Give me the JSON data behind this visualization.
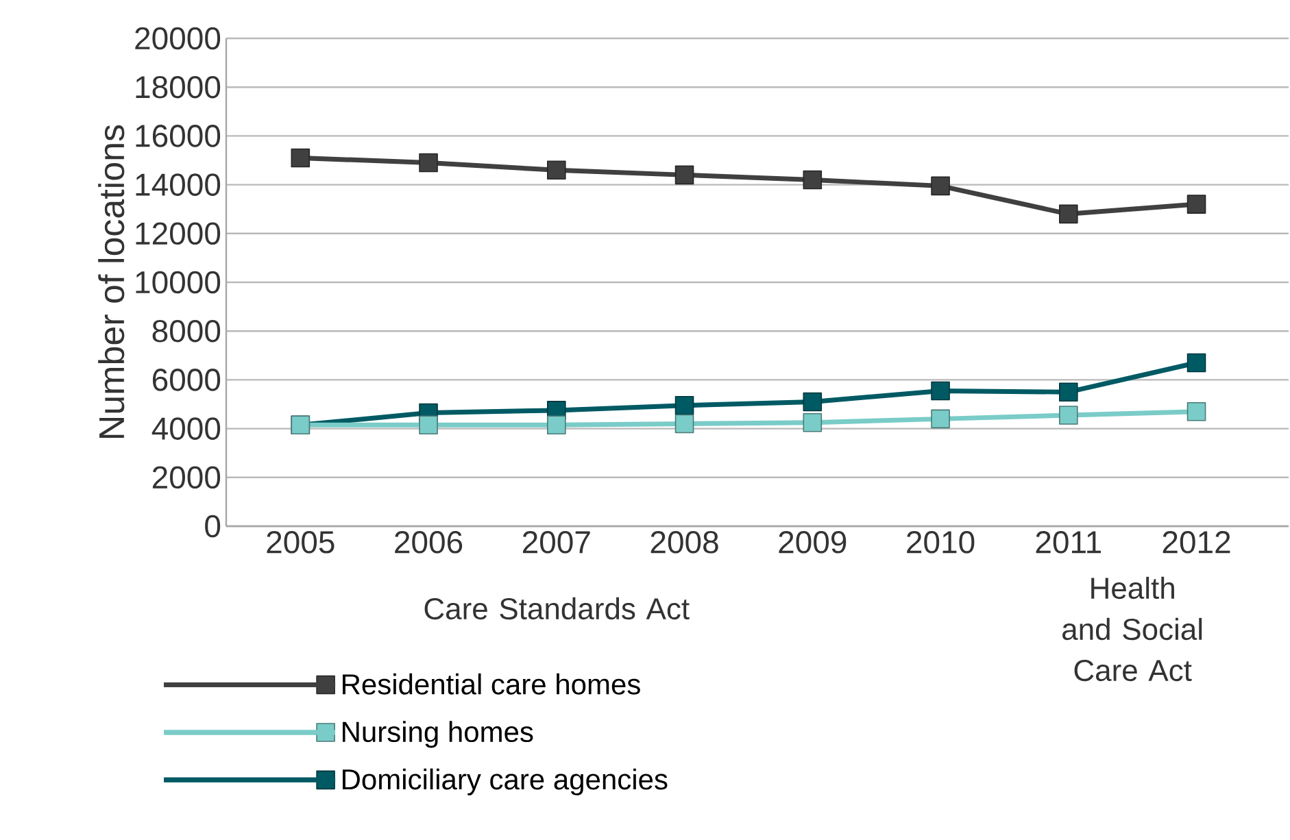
{
  "chart_data": {
    "type": "line",
    "ylabel": "Number of locations",
    "categories": [
      "2005",
      "2006",
      "2007",
      "2008",
      "2009",
      "2010",
      "2011",
      "2012"
    ],
    "series": [
      {
        "name": "Residential care homes",
        "color": "#404040",
        "values": [
          15100,
          14900,
          14600,
          14400,
          14200,
          13950,
          12800,
          13200
        ]
      },
      {
        "name": "Nursing homes",
        "color": "#7accc8",
        "values": [
          4150,
          4150,
          4150,
          4200,
          4250,
          4400,
          4550,
          4700
        ]
      },
      {
        "name": "Domiciliary care agencies",
        "color": "#005a64",
        "values": [
          4150,
          4650,
          4750,
          4950,
          5100,
          5550,
          5500,
          6700
        ]
      }
    ],
    "ylim": [
      0,
      20000
    ],
    "yticks": [
      0,
      2000,
      4000,
      6000,
      8000,
      10000,
      12000,
      14000,
      16000,
      18000,
      20000
    ],
    "grid": "y",
    "legend": "bottom",
    "marker": "square",
    "line_style": "solid",
    "annotations": [
      "Care Standards Act",
      "Health and Social Care Act"
    ]
  }
}
